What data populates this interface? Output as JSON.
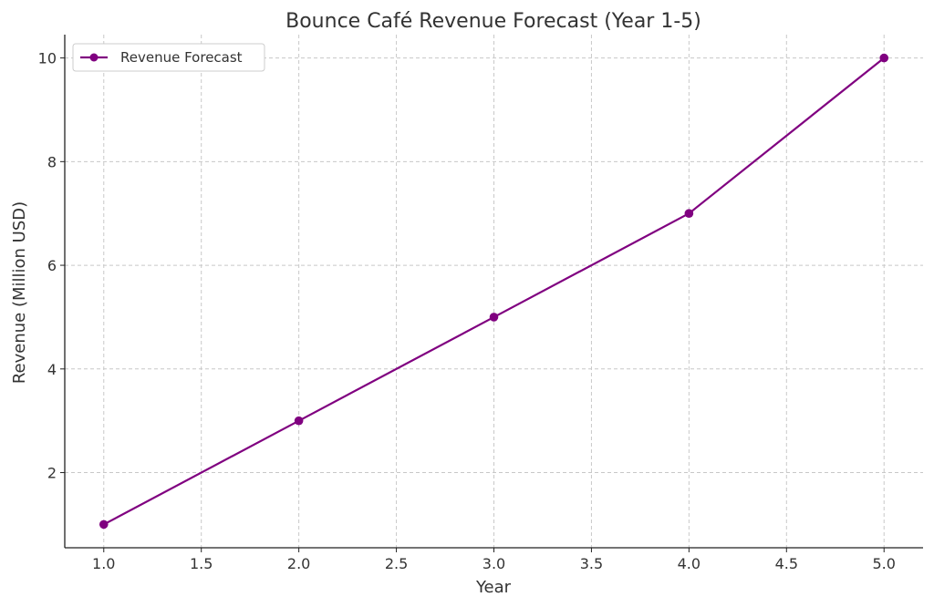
{
  "chart_data": {
    "type": "line",
    "title": "Bounce Café Revenue Forecast (Year 1-5)",
    "xlabel": "Year",
    "ylabel": "Revenue (Million USD)",
    "xlim": [
      0.8,
      5.2
    ],
    "ylim": [
      0.55,
      10.45
    ],
    "xticks": [
      1.0,
      1.5,
      2.0,
      2.5,
      3.0,
      3.5,
      4.0,
      4.5,
      5.0
    ],
    "xtick_labels": [
      "1.0",
      "1.5",
      "2.0",
      "2.5",
      "3.0",
      "3.5",
      "4.0",
      "4.5",
      "5.0"
    ],
    "yticks": [
      2,
      4,
      6,
      8,
      10
    ],
    "ytick_labels": [
      "2",
      "4",
      "6",
      "8",
      "10"
    ],
    "grid": true,
    "legend_position": "top-left",
    "series": [
      {
        "name": "Revenue Forecast",
        "color": "#800080",
        "marker": "circle",
        "x": [
          1,
          2,
          3,
          4,
          5
        ],
        "y": [
          1,
          3,
          5,
          7,
          10
        ]
      }
    ]
  }
}
